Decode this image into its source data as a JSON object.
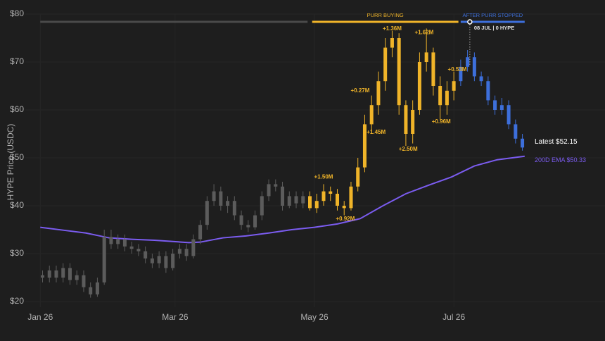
{
  "chart_data": {
    "type": "candlestick",
    "y_label": "HYPE Price (USDC)",
    "ylim": [
      20,
      80
    ],
    "yticks": [
      {
        "value": 20,
        "label": "$20"
      },
      {
        "value": 30,
        "label": "$30"
      },
      {
        "value": 40,
        "label": "$40"
      },
      {
        "value": 50,
        "label": "$50"
      },
      {
        "value": 60,
        "label": "$60"
      },
      {
        "value": 70,
        "label": "$70"
      },
      {
        "value": 80,
        "label": "$80"
      }
    ],
    "xlim": [
      -5,
      245
    ],
    "xticks": [
      {
        "value": 0,
        "label": "Jan 26"
      },
      {
        "value": 59,
        "label": "Mar 26"
      },
      {
        "value": 120,
        "label": "May 26"
      },
      {
        "value": 181,
        "label": "Jul 26"
      }
    ],
    "grid": true,
    "phases": [
      {
        "start": 0,
        "end": 117,
        "color": "#4a4a4a",
        "candle_color": "#5c5c5c"
      },
      {
        "label": "PURR BUYING",
        "start": 119,
        "end": 183,
        "color": "#f0b429",
        "candle_color": "#f0b429"
      },
      {
        "label": "AFTER PURR STOPPED",
        "start": 184,
        "end": 212,
        "color": "#3d6fdb",
        "candle_color": "#3d6fdb"
      }
    ],
    "candles": {
      "x": [
        1,
        4,
        7,
        10,
        13,
        16,
        19,
        22,
        25,
        28,
        31,
        34,
        37,
        40,
        43,
        46,
        49,
        52,
        55,
        58,
        61,
        64,
        67,
        70,
        73,
        76,
        79,
        82,
        85,
        88,
        91,
        94,
        97,
        100,
        103,
        106,
        109,
        112,
        115,
        118,
        121,
        124,
        127,
        130,
        133,
        136,
        139,
        142,
        145,
        148,
        151,
        154,
        157,
        160,
        163,
        166,
        169,
        172,
        175,
        178,
        181,
        184,
        187,
        190,
        193,
        196,
        199,
        202,
        205,
        208,
        211
      ],
      "open": [
        25.5,
        25,
        26.5,
        25,
        27,
        24.5,
        25.5,
        23,
        21.5,
        24,
        33.5,
        32,
        33,
        31.5,
        31,
        30.5,
        29,
        28,
        29.5,
        27,
        30,
        31,
        29.5,
        33,
        36,
        41,
        43,
        40,
        41,
        38,
        36,
        35.5,
        38,
        42,
        44.5,
        44,
        40,
        42,
        40.5,
        42,
        39.5,
        41,
        43,
        42.5,
        40,
        39.5,
        44,
        48,
        57,
        61,
        66,
        73,
        75,
        61,
        55,
        60,
        70,
        72,
        65,
        61,
        64,
        66,
        69,
        71,
        67,
        66,
        62,
        60,
        61,
        57,
        54
      ],
      "high": [
        26.5,
        27.5,
        27.5,
        28,
        28,
        26.5,
        26.5,
        24,
        25,
        35,
        35,
        34,
        34,
        32.5,
        32,
        31.5,
        30,
        30.5,
        30.5,
        31,
        32,
        32,
        34,
        37,
        42,
        44.5,
        44,
        42,
        42,
        39,
        37,
        39,
        43,
        45.5,
        45.5,
        45,
        43,
        43,
        43,
        43,
        42.5,
        44.5,
        44,
        43.5,
        41,
        45,
        50,
        59,
        63,
        68,
        75,
        76.5,
        76,
        62,
        62,
        72,
        77,
        73,
        67,
        66,
        68,
        70.5,
        72.5,
        72,
        68,
        67,
        63,
        62.5,
        62,
        58,
        55
      ],
      "low": [
        24,
        24,
        24,
        24,
        23.5,
        23.5,
        22,
        20.8,
        21,
        23.5,
        31,
        31,
        30.5,
        30,
        29.5,
        28,
        27,
        27,
        26,
        26.5,
        29,
        28.5,
        29,
        32,
        35,
        40,
        39,
        38.5,
        37,
        35,
        34.5,
        35,
        37,
        41,
        43,
        39,
        39.5,
        39.5,
        39.5,
        39,
        38.5,
        40,
        41,
        39,
        38,
        39,
        43,
        47,
        55,
        59,
        64,
        71,
        59,
        52.5,
        53,
        59,
        68,
        63,
        58,
        59,
        62,
        65,
        68,
        66,
        65,
        61,
        59,
        59,
        56,
        53,
        51.5
      ],
      "close": [
        25,
        26.5,
        25,
        27,
        24.5,
        25.5,
        23,
        21.5,
        24,
        33.5,
        32,
        33,
        31.5,
        31,
        30.5,
        29,
        28,
        29.5,
        27,
        30,
        31,
        29.5,
        33,
        36,
        41,
        43,
        40,
        41,
        38,
        36,
        35.5,
        38,
        42,
        44.5,
        44,
        40,
        42,
        40.5,
        42,
        39.5,
        41,
        43,
        42.5,
        40,
        39.5,
        44,
        48,
        57,
        61,
        66,
        73,
        75,
        61,
        55,
        60,
        70,
        72,
        65,
        61,
        64,
        66,
        69,
        71,
        67,
        66,
        62,
        60,
        61,
        57,
        54,
        52.15
      ]
    },
    "ema": {
      "name": "200D EMA",
      "color": "#7b5cf0",
      "x": [
        0,
        10,
        20,
        30,
        40,
        50,
        65,
        70,
        80,
        90,
        100,
        110,
        120,
        130,
        140,
        150,
        160,
        170,
        180,
        190,
        200,
        212
      ],
      "values": [
        35.5,
        34.9,
        34.3,
        33.3,
        33.0,
        32.8,
        32.3,
        32.4,
        33.3,
        33.7,
        34.3,
        35.0,
        35.5,
        36.2,
        37.3,
        40.0,
        42.5,
        44.3,
        46.0,
        48.3,
        49.6,
        50.33
      ]
    },
    "latest_label": "Latest $52.15",
    "ema_label": "200D EMA $50.33",
    "marker": {
      "x": 188,
      "label": "08 JUL | 0 HYPE"
    },
    "annotations": [
      {
        "text": "+1.50M",
        "x": 124,
        "y": 46.0
      },
      {
        "text": "+0.92M",
        "x": 133.5,
        "y": 37.2
      },
      {
        "text": "+0.27M",
        "x": 140,
        "y": 64.0
      },
      {
        "text": "+1.36M",
        "x": 154,
        "y": 76.9
      },
      {
        "text": "+1.45M",
        "x": 147,
        "y": 55.3
      },
      {
        "text": "+2.50M",
        "x": 161,
        "y": 51.8
      },
      {
        "text": "+1.62M",
        "x": 168,
        "y": 76.1
      },
      {
        "text": "+0.96M",
        "x": 175.5,
        "y": 57.5
      },
      {
        "text": "+0.53M",
        "x": 182.5,
        "y": 68.4
      }
    ]
  }
}
